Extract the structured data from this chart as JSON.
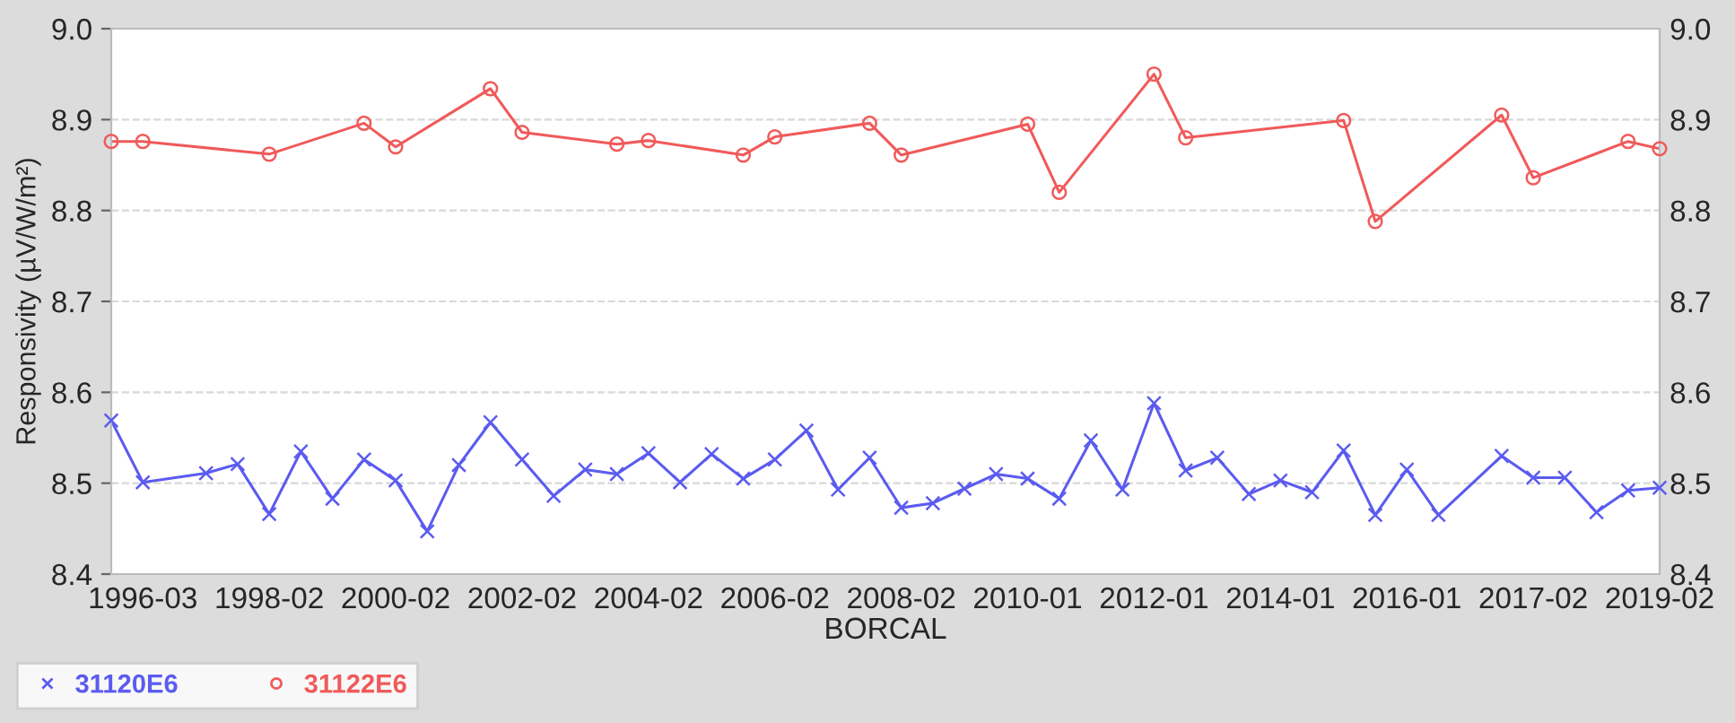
{
  "chart_data": {
    "type": "line",
    "xlabel": "BORCAL",
    "ylabel": "Responsivity (µV/W/m²)",
    "categories": [
      null,
      "1996-03",
      null,
      null,
      null,
      "1998-02",
      null,
      null,
      null,
      "2000-02",
      null,
      null,
      null,
      "2002-02",
      null,
      null,
      null,
      "2004-02",
      null,
      null,
      null,
      "2006-02",
      null,
      null,
      null,
      "2008-02",
      null,
      null,
      null,
      "2010-01",
      null,
      null,
      null,
      "2012-01",
      null,
      null,
      null,
      "2014-01",
      null,
      null,
      null,
      "2016-01",
      null,
      null,
      null,
      "2017-02",
      null,
      null,
      null,
      "2019-02"
    ],
    "series": [
      {
        "name": "31120E6",
        "color": "#5b5bf0",
        "marker": "cross",
        "values": [
          8.569,
          8.501,
          null,
          8.511,
          8.521,
          8.466,
          8.535,
          8.483,
          8.526,
          8.503,
          8.447,
          8.52,
          8.567,
          8.526,
          8.486,
          8.515,
          8.51,
          8.533,
          8.501,
          8.532,
          8.505,
          8.526,
          8.558,
          8.493,
          8.528,
          8.473,
          8.478,
          8.494,
          8.51,
          8.505,
          8.483,
          8.547,
          8.493,
          8.588,
          8.514,
          8.528,
          8.488,
          8.503,
          8.49,
          8.536,
          8.465,
          8.515,
          8.465,
          null,
          8.53,
          8.506,
          8.506,
          8.468,
          8.492,
          8.495
        ]
      },
      {
        "name": "31122E6",
        "color": "#f05a5a",
        "marker": "circle",
        "values": [
          8.876,
          8.876,
          null,
          null,
          null,
          8.862,
          null,
          null,
          8.896,
          8.87,
          null,
          null,
          8.934,
          8.886,
          null,
          null,
          8.873,
          8.877,
          null,
          null,
          8.861,
          8.881,
          null,
          null,
          8.896,
          8.861,
          null,
          null,
          null,
          8.895,
          8.82,
          null,
          null,
          8.95,
          8.88,
          null,
          null,
          null,
          null,
          8.899,
          8.788,
          null,
          null,
          null,
          8.905,
          8.836,
          null,
          null,
          8.876,
          8.868
        ]
      }
    ],
    "ylim": [
      8.4,
      9.0
    ],
    "yticks": [
      8.4,
      8.5,
      8.6,
      8.7,
      8.8,
      8.9,
      {
        "value": 9.0,
        "label": "9.0"
      }
    ],
    "y2lim": [
      8.4,
      9.0
    ],
    "y2ticks": [
      8.4,
      8.5,
      8.6,
      8.7,
      8.8,
      8.9,
      {
        "value": 9.0,
        "label": "9.0"
      }
    ],
    "grid": "y",
    "legend": "bottom left",
    "line_style": "solid"
  }
}
